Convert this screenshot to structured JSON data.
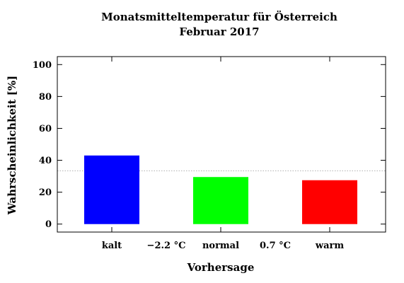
{
  "chart_data": {
    "type": "bar",
    "title_lines": [
      "Monatsmitteltemperatur für Österreich",
      "Februar 2017"
    ],
    "xlabel": "Vorhersage",
    "ylabel": "Wahrscheinlichkeit [%]",
    "categories": [
      "kalt",
      "normal",
      "warm"
    ],
    "values": [
      43,
      29.5,
      27.5
    ],
    "colors": [
      "#0000ff",
      "#00ff00",
      "#ff0000"
    ],
    "thresholds": [
      "−2.2 °C",
      "0.7 °C"
    ],
    "reference_line": 33.3,
    "ylim": [
      -5,
      105
    ],
    "yticks": [
      0,
      20,
      40,
      60,
      80,
      100
    ],
    "grid": false,
    "legend": "none"
  }
}
